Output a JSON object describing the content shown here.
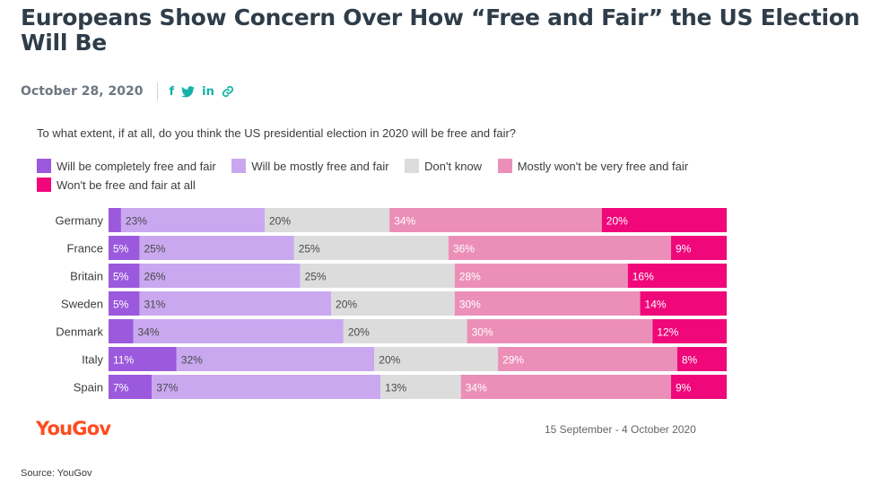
{
  "article": {
    "title": "Europeans Show Concern Over How “Free and Fair” the US Election Will Be",
    "date": "October 28, 2020",
    "share_icons": [
      {
        "name": "facebook-icon",
        "glyph": "f"
      },
      {
        "name": "twitter-icon",
        "glyph": "🐦"
      },
      {
        "name": "linkedin-icon",
        "glyph": "in"
      },
      {
        "name": "link-icon",
        "glyph": "🔗"
      }
    ],
    "source": "Source: YouGov"
  },
  "chart_data": {
    "type": "bar",
    "orientation": "horizontal",
    "stacked": true,
    "title": "To what extent, if at all, do you think the US presidential election in 2020 will be free and fair?",
    "categories": [
      "Germany",
      "France",
      "Britain",
      "Sweden",
      "Denmark",
      "Italy",
      "Spain"
    ],
    "series": [
      {
        "name": "Will be completely free and fair",
        "color": "#9b59dd",
        "values": [
          2,
          5,
          5,
          5,
          4,
          11,
          7
        ],
        "labels": [
          "",
          "5%",
          "5%",
          "5%",
          "",
          "11%",
          "7%"
        ]
      },
      {
        "name": "Will be mostly free and fair",
        "color": "#c9a8f0",
        "values": [
          23,
          25,
          26,
          31,
          34,
          32,
          37
        ],
        "labels": [
          "23%",
          "25%",
          "26%",
          "31%",
          "34%",
          "32%",
          "37%"
        ]
      },
      {
        "name": "Don't know",
        "color": "#dcdcdc",
        "values": [
          20,
          25,
          25,
          20,
          20,
          20,
          13
        ],
        "labels": [
          "20%",
          "25%",
          "25%",
          "20%",
          "20%",
          "20%",
          "13%"
        ]
      },
      {
        "name": "Mostly won't be very free and fair",
        "color": "#ec8fb8",
        "values": [
          34,
          36,
          28,
          30,
          30,
          29,
          34
        ],
        "labels": [
          "34%",
          "36%",
          "28%",
          "30%",
          "30%",
          "29%",
          "34%"
        ]
      },
      {
        "name": "Won't be free and fair at all",
        "color": "#f0077a",
        "values": [
          20,
          9,
          16,
          14,
          12,
          8,
          9
        ],
        "labels": [
          "20%",
          "9%",
          "16%",
          "14%",
          "12%",
          "8%",
          "9%"
        ]
      }
    ],
    "legend_position": "top",
    "grid": false,
    "logo": "YouGov",
    "fieldwork_dates": "15 September - 4 October 2020"
  }
}
